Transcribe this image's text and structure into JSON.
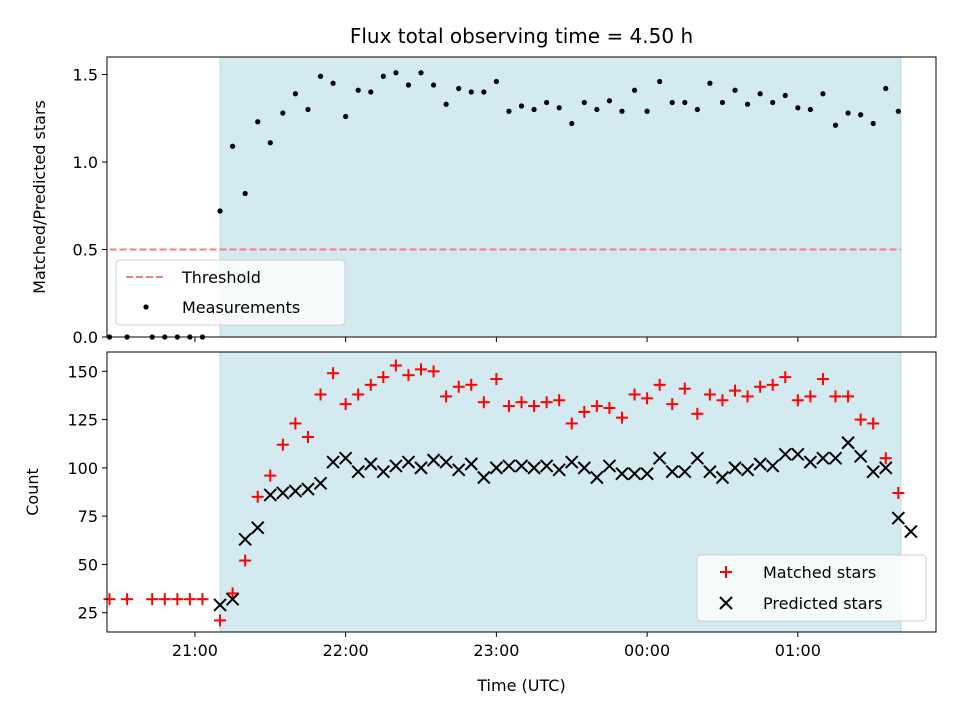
{
  "chart_data": [
    {
      "type": "scatter",
      "title": "Flux total observing time = 4.50 h",
      "xlabel": "",
      "ylabel": "Matched/Predicted stars",
      "ylim": [
        0,
        1.6
      ],
      "yticks": [
        "0.0",
        "0.5",
        "1.0",
        "1.5"
      ],
      "xlim": [
        "20:25",
        "01:55"
      ],
      "shaded_interval": [
        "21:10",
        "01:41"
      ],
      "threshold": {
        "name": "Threshold",
        "value": 0.5,
        "x_start": "20:26",
        "x_end": "01:41",
        "color": "#f08080"
      },
      "legend": {
        "location": "lower-left",
        "entries": [
          "Threshold",
          "Measurements"
        ]
      },
      "series": [
        {
          "name": "Measurements",
          "marker": "dot",
          "color": "#000000",
          "points": [
            [
              "20:26",
              0.0
            ],
            [
              "20:33",
              0.0
            ],
            [
              "20:43",
              0.0
            ],
            [
              "20:48",
              0.0
            ],
            [
              "20:53",
              0.0
            ],
            [
              "20:58",
              0.0
            ],
            [
              "21:03",
              0.0
            ],
            [
              "21:10",
              0.72
            ],
            [
              "21:15",
              1.09
            ],
            [
              "21:20",
              0.82
            ],
            [
              "21:25",
              1.23
            ],
            [
              "21:30",
              1.11
            ],
            [
              "21:35",
              1.28
            ],
            [
              "21:40",
              1.39
            ],
            [
              "21:45",
              1.3
            ],
            [
              "21:50",
              1.49
            ],
            [
              "21:55",
              1.45
            ],
            [
              "22:00",
              1.26
            ],
            [
              "22:05",
              1.41
            ],
            [
              "22:10",
              1.4
            ],
            [
              "22:15",
              1.49
            ],
            [
              "22:20",
              1.51
            ],
            [
              "22:25",
              1.44
            ],
            [
              "22:30",
              1.51
            ],
            [
              "22:35",
              1.44
            ],
            [
              "22:40",
              1.33
            ],
            [
              "22:45",
              1.42
            ],
            [
              "22:50",
              1.4
            ],
            [
              "22:55",
              1.4
            ],
            [
              "23:00",
              1.46
            ],
            [
              "23:05",
              1.29
            ],
            [
              "23:10",
              1.32
            ],
            [
              "23:15",
              1.3
            ],
            [
              "23:20",
              1.34
            ],
            [
              "23:25",
              1.31
            ],
            [
              "23:30",
              1.22
            ],
            [
              "23:35",
              1.34
            ],
            [
              "23:40",
              1.3
            ],
            [
              "23:45",
              1.35
            ],
            [
              "23:50",
              1.29
            ],
            [
              "23:55",
              1.41
            ],
            [
              "00:00",
              1.29
            ],
            [
              "00:05",
              1.46
            ],
            [
              "00:10",
              1.34
            ],
            [
              "00:15",
              1.34
            ],
            [
              "00:20",
              1.3
            ],
            [
              "00:25",
              1.45
            ],
            [
              "00:30",
              1.34
            ],
            [
              "00:35",
              1.41
            ],
            [
              "00:40",
              1.33
            ],
            [
              "00:45",
              1.39
            ],
            [
              "00:50",
              1.34
            ],
            [
              "00:55",
              1.38
            ],
            [
              "01:00",
              1.31
            ],
            [
              "01:05",
              1.3
            ],
            [
              "01:10",
              1.39
            ],
            [
              "01:15",
              1.21
            ],
            [
              "01:20",
              1.28
            ],
            [
              "01:25",
              1.27
            ],
            [
              "01:30",
              1.22
            ],
            [
              "01:35",
              1.42
            ],
            [
              "01:40",
              1.29
            ]
          ]
        }
      ]
    },
    {
      "type": "scatter",
      "title": "",
      "xlabel": "Time (UTC)",
      "ylabel": "Count",
      "ylim": [
        15,
        160
      ],
      "yticks": [
        "25",
        "50",
        "75",
        "100",
        "125",
        "150"
      ],
      "xticks": [
        "21:00",
        "22:00",
        "23:00",
        "00:00",
        "01:00"
      ],
      "xlim": [
        "20:25",
        "01:55"
      ],
      "shaded_interval": [
        "21:10",
        "01:41"
      ],
      "legend": {
        "location": "lower-right",
        "entries": [
          "Matched stars",
          "Predicted stars"
        ]
      },
      "series": [
        {
          "name": "Matched stars",
          "marker": "plus",
          "color": "#ff0000",
          "points": [
            [
              "20:26",
              32
            ],
            [
              "20:33",
              32
            ],
            [
              "20:43",
              32
            ],
            [
              "20:48",
              32
            ],
            [
              "20:53",
              32
            ],
            [
              "20:58",
              32
            ],
            [
              "21:03",
              32
            ],
            [
              "21:10",
              21
            ],
            [
              "21:15",
              35
            ],
            [
              "21:20",
              52
            ],
            [
              "21:25",
              85
            ],
            [
              "21:30",
              96
            ],
            [
              "21:35",
              112
            ],
            [
              "21:40",
              123
            ],
            [
              "21:45",
              116
            ],
            [
              "21:50",
              138
            ],
            [
              "21:55",
              149
            ],
            [
              "22:00",
              133
            ],
            [
              "22:05",
              138
            ],
            [
              "22:10",
              143
            ],
            [
              "22:15",
              147
            ],
            [
              "22:20",
              153
            ],
            [
              "22:25",
              148
            ],
            [
              "22:30",
              151
            ],
            [
              "22:35",
              150
            ],
            [
              "22:40",
              137
            ],
            [
              "22:45",
              142
            ],
            [
              "22:50",
              143
            ],
            [
              "22:55",
              134
            ],
            [
              "23:00",
              146
            ],
            [
              "23:05",
              132
            ],
            [
              "23:10",
              134
            ],
            [
              "23:15",
              132
            ],
            [
              "23:20",
              134
            ],
            [
              "23:25",
              135
            ],
            [
              "23:30",
              123
            ],
            [
              "23:35",
              129
            ],
            [
              "23:40",
              132
            ],
            [
              "23:45",
              131
            ],
            [
              "23:50",
              126
            ],
            [
              "23:55",
              138
            ],
            [
              "00:00",
              136
            ],
            [
              "00:05",
              143
            ],
            [
              "00:10",
              133
            ],
            [
              "00:15",
              141
            ],
            [
              "00:20",
              128
            ],
            [
              "00:25",
              138
            ],
            [
              "00:30",
              135
            ],
            [
              "00:35",
              140
            ],
            [
              "00:40",
              137
            ],
            [
              "00:45",
              142
            ],
            [
              "00:50",
              143
            ],
            [
              "00:55",
              147
            ],
            [
              "01:00",
              135
            ],
            [
              "01:05",
              137
            ],
            [
              "01:10",
              146
            ],
            [
              "01:15",
              137
            ],
            [
              "01:20",
              137
            ],
            [
              "01:25",
              125
            ],
            [
              "01:30",
              123
            ],
            [
              "01:35",
              105
            ],
            [
              "01:40",
              87
            ]
          ]
        },
        {
          "name": "Predicted stars",
          "marker": "x",
          "color": "#000000",
          "points": [
            [
              "21:10",
              29
            ],
            [
              "21:15",
              32
            ],
            [
              "21:20",
              63
            ],
            [
              "21:25",
              69
            ],
            [
              "21:30",
              86
            ],
            [
              "21:35",
              87
            ],
            [
              "21:40",
              88
            ],
            [
              "21:45",
              89
            ],
            [
              "21:50",
              92
            ],
            [
              "21:55",
              103
            ],
            [
              "22:00",
              105
            ],
            [
              "22:05",
              98
            ],
            [
              "22:10",
              102
            ],
            [
              "22:15",
              98
            ],
            [
              "22:20",
              101
            ],
            [
              "22:25",
              103
            ],
            [
              "22:30",
              100
            ],
            [
              "22:35",
              104
            ],
            [
              "22:40",
              103
            ],
            [
              "22:45",
              99
            ],
            [
              "22:50",
              102
            ],
            [
              "22:55",
              95
            ],
            [
              "23:00",
              100
            ],
            [
              "23:05",
              101
            ],
            [
              "23:10",
              101
            ],
            [
              "23:15",
              100
            ],
            [
              "23:20",
              101
            ],
            [
              "23:25",
              99
            ],
            [
              "23:30",
              103
            ],
            [
              "23:35",
              100
            ],
            [
              "23:40",
              95
            ],
            [
              "23:45",
              101
            ],
            [
              "23:50",
              97
            ],
            [
              "23:55",
              97
            ],
            [
              "00:00",
              97
            ],
            [
              "00:05",
              105
            ],
            [
              "00:10",
              98
            ],
            [
              "00:15",
              98
            ],
            [
              "00:20",
              105
            ],
            [
              "00:25",
              98
            ],
            [
              "00:30",
              95
            ],
            [
              "00:35",
              100
            ],
            [
              "00:40",
              99
            ],
            [
              "00:45",
              102
            ],
            [
              "00:50",
              101
            ],
            [
              "00:55",
              107
            ],
            [
              "01:00",
              107
            ],
            [
              "01:05",
              103
            ],
            [
              "01:10",
              105
            ],
            [
              "01:15",
              105
            ],
            [
              "01:20",
              113
            ],
            [
              "01:25",
              106
            ],
            [
              "01:30",
              98
            ],
            [
              "01:35",
              100
            ],
            [
              "01:40",
              74
            ],
            [
              "01:45",
              67
            ]
          ]
        }
      ]
    }
  ],
  "colors": {
    "shade": "#d3eaf0",
    "shade_edge": "#b8dbe6",
    "threshold": "#f08080",
    "matched": "#ff0000",
    "predicted": "#000000",
    "measurements": "#000000"
  }
}
